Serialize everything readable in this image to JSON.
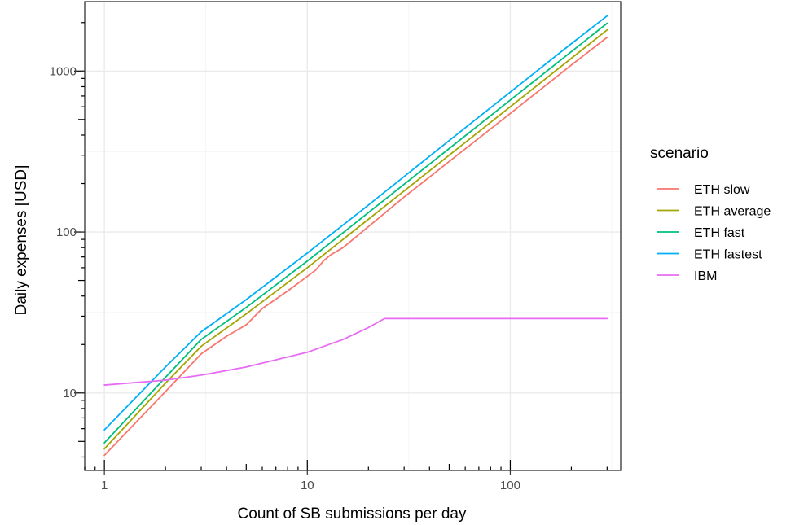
{
  "chart_data": {
    "type": "line",
    "xlabel": "Count of SB submissions per day",
    "ylabel": "Daily expenses [USD]",
    "x_scale": "log10",
    "y_scale": "log10",
    "xlim": [
      0.8,
      350
    ],
    "ylim": [
      3.3,
      2700
    ],
    "x_ticks": [
      1,
      10,
      100
    ],
    "x_tick_labels": [
      "1",
      "10",
      "100"
    ],
    "y_ticks": [
      10,
      100,
      1000
    ],
    "y_tick_labels": [
      "10",
      "100",
      "1000"
    ],
    "grid": true,
    "legend": {
      "title": "scenario",
      "position": "right"
    },
    "series": [
      {
        "name": "ETH slow",
        "color": "#F8766D",
        "x": [
          1,
          2,
          3,
          4,
          5,
          6,
          8,
          10,
          11,
          12,
          13,
          15,
          20,
          30,
          50,
          100,
          200,
          300
        ],
        "y": [
          4.1,
          10.2,
          17.5,
          22.5,
          26.5,
          33.5,
          43,
          53,
          58,
          66,
          72,
          80,
          108,
          165,
          274,
          545,
          1090,
          1620
        ]
      },
      {
        "name": "ETH average",
        "color": "#A3A500",
        "x": [
          1,
          2,
          3,
          5,
          10,
          20,
          50,
          100,
          200,
          300
        ],
        "y": [
          4.5,
          11.5,
          19.5,
          31,
          60,
          120,
          300,
          600,
          1200,
          1800
        ]
      },
      {
        "name": "ETH fast",
        "color": "#00BF7D",
        "x": [
          1,
          2,
          3,
          5,
          10,
          20,
          50,
          100,
          200,
          300
        ],
        "y": [
          4.9,
          12.5,
          21.5,
          34,
          66,
          132,
          330,
          660,
          1320,
          1980
        ]
      },
      {
        "name": "ETH fastest",
        "color": "#00B0F6",
        "x": [
          1,
          2,
          3,
          5,
          10,
          20,
          50,
          100,
          200,
          300
        ],
        "y": [
          5.9,
          14.5,
          24,
          38,
          74,
          147,
          370,
          740,
          1480,
          2200
        ]
      },
      {
        "name": "IBM",
        "color": "#E76BF3",
        "x": [
          1,
          2,
          3,
          5,
          10,
          15,
          20,
          24,
          50,
          100,
          200,
          300
        ],
        "y": [
          11.2,
          12.0,
          12.9,
          14.5,
          17.9,
          21.5,
          25.5,
          29,
          29,
          29,
          29,
          29
        ]
      }
    ]
  }
}
